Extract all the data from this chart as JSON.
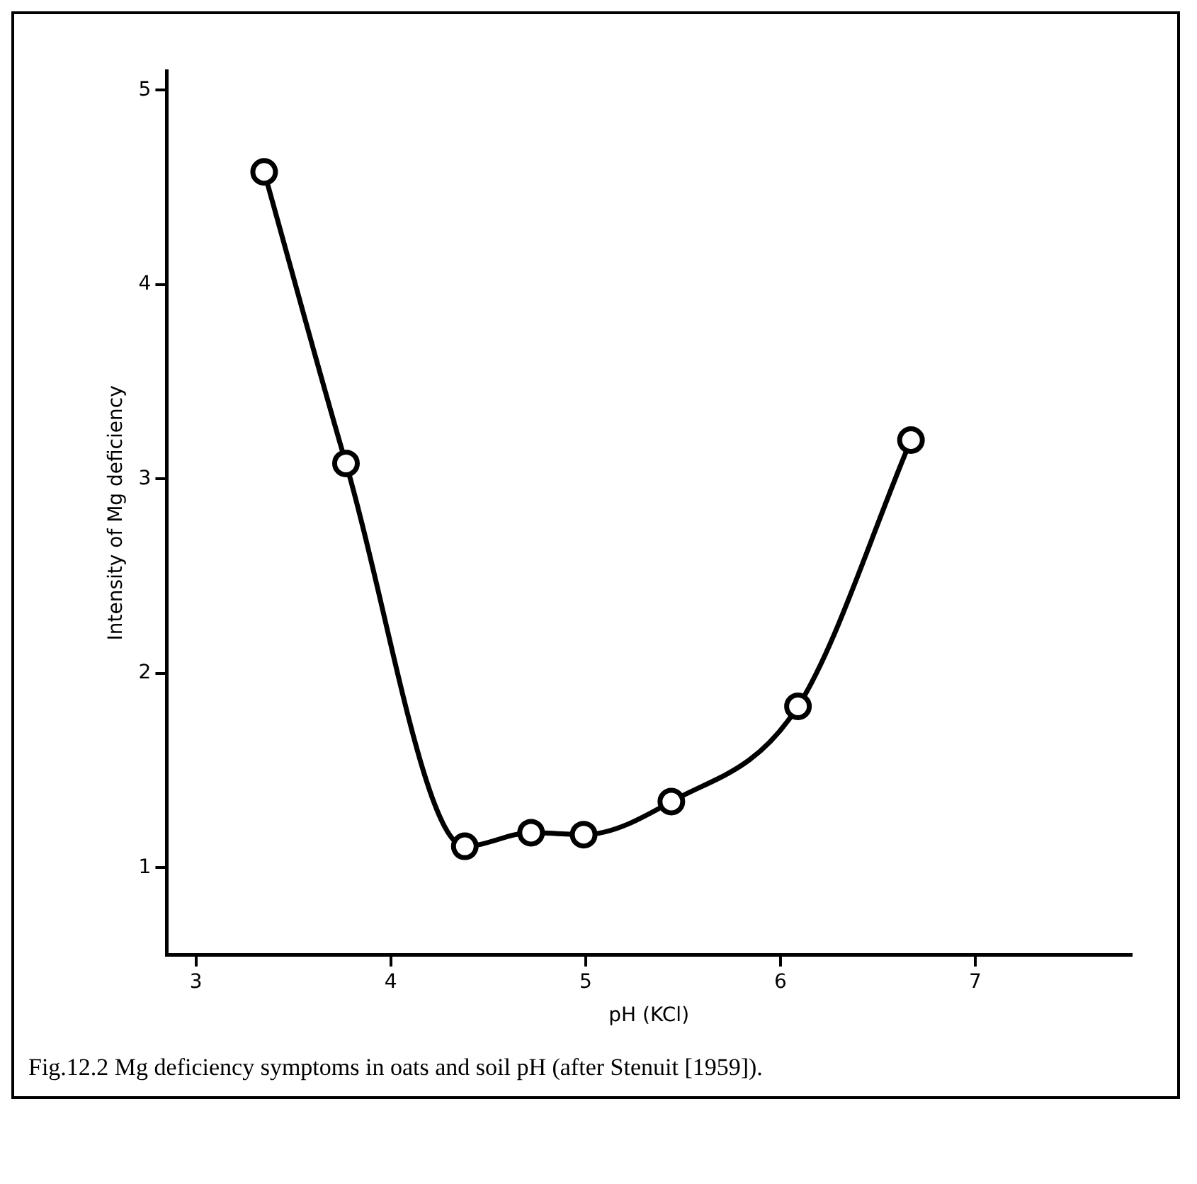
{
  "chart_data": {
    "type": "line",
    "xlabel": "pH (KCl)",
    "ylabel": "Intensity of Mg deficiency",
    "x": [
      3.35,
      3.77,
      4.38,
      4.72,
      4.99,
      5.44,
      6.09,
      6.67
    ],
    "series": [
      {
        "color": "#000000",
        "values": [
          4.58,
          3.08,
          1.11,
          1.18,
          1.17,
          1.34,
          1.83,
          3.2
        ]
      }
    ],
    "xlim": [
      2.85,
      7.8
    ],
    "xticks": [
      3,
      4,
      5,
      6,
      7
    ],
    "ylim": [
      0.55,
      5.1
    ],
    "yticks": [
      1,
      2,
      3,
      4,
      5
    ],
    "grid": false,
    "legend": false,
    "marker": "circle",
    "line_style": "solid",
    "annotations": [
      "Fig.12.2 Mg deficiency symptoms in oats and soil pH (after Stenuit [1959])."
    ]
  }
}
